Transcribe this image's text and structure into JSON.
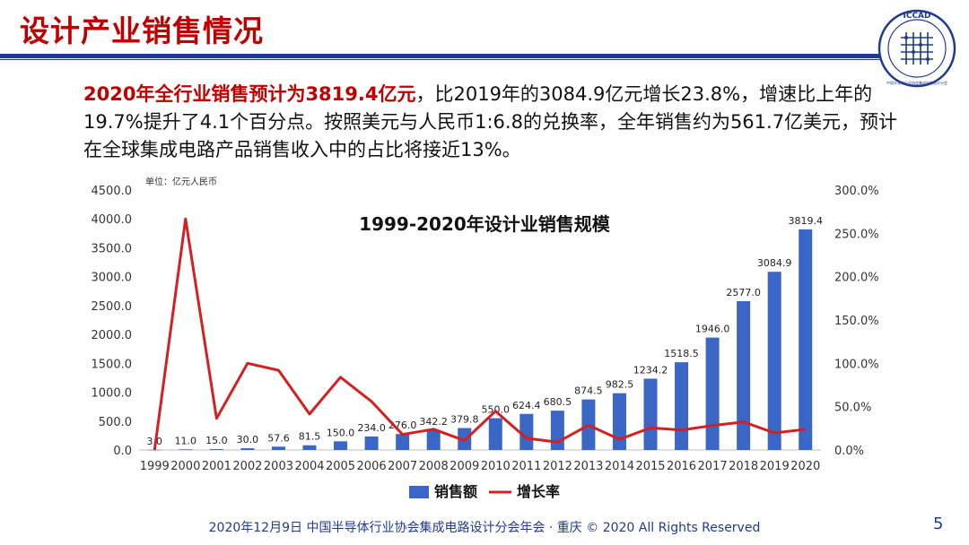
{
  "page": {
    "title": "设计产业销售情况",
    "logo_text": "ICCAD",
    "logo_sub": "中国半导体行业协会集成电路设计分会",
    "para_highlight": "2020年全行业销售预计为3819.4亿元",
    "para_rest": "，比2019年的3084.9亿元增长23.8%，增速比上年的19.7%提升了4.1个百分点。按照美元与人民币1:6.8的兑换率，全年销售约为561.7亿美元，预计在全球集成电路产品销售收入中的占比将接近13%。",
    "footer": "2020年12月9日  中国半导体行业协会集成电路设计分会年会 · 重庆 © 2020 All Rights Reserved",
    "page_number": "5"
  },
  "colors": {
    "accent_red": "#c00000",
    "navy": "#1f3b8f",
    "bar": "#3a66c6",
    "line": "#d42020"
  },
  "chart_data": {
    "type": "bar",
    "title": "1999-2020年设计业销售规模",
    "unit_label": "单位：亿元人民币",
    "categories": [
      "1999",
      "2000",
      "2001",
      "2002",
      "2003",
      "2004",
      "2005",
      "2006",
      "2007",
      "2008",
      "2009",
      "2010",
      "2011",
      "2012",
      "2013",
      "2014",
      "2015",
      "2016",
      "2017",
      "2018",
      "2019",
      "2020"
    ],
    "series": [
      {
        "name": "销售额",
        "type": "bar",
        "axis": "left",
        "values": [
          3.0,
          11.0,
          15.0,
          30.0,
          57.6,
          81.5,
          150.0,
          234.0,
          276.0,
          342.2,
          379.8,
          550.0,
          624.4,
          680.5,
          874.5,
          982.5,
          1234.2,
          1518.5,
          1946.0,
          2577.0,
          3084.9,
          3819.4
        ],
        "labels": [
          "3.0",
          "11.0",
          "15.0",
          "30.0",
          "57.6",
          "81.5",
          "150.0",
          "234.0",
          "276.0",
          "342.2",
          "379.8",
          "550.0",
          "624.4",
          "680.5",
          "874.5",
          "982.5",
          "1234.2",
          "1518.5",
          "1946.0",
          "2577.0",
          "3084.9",
          "3819.4"
        ]
      },
      {
        "name": "增长率",
        "type": "line",
        "axis": "right",
        "values": [
          0,
          266.7,
          36.4,
          100.0,
          92.0,
          41.5,
          84.0,
          56.0,
          17.9,
          24.0,
          11.0,
          44.8,
          13.5,
          9.0,
          28.5,
          12.3,
          25.6,
          23.0,
          28.2,
          32.4,
          19.7,
          23.8
        ]
      }
    ],
    "ylim_left": [
      0,
      4500
    ],
    "yticks_left": [
      "0.0",
      "500.0",
      "1000.0",
      "1500.0",
      "2000.0",
      "2500.0",
      "3000.0",
      "3500.0",
      "4000.0",
      "4500.0"
    ],
    "ylim_right": [
      0,
      300
    ],
    "yticks_right": [
      "0.0%",
      "50.0%",
      "100.0%",
      "150.0%",
      "200.0%",
      "250.0%",
      "300.0%"
    ],
    "legend_position": "bottom",
    "grid": false
  }
}
